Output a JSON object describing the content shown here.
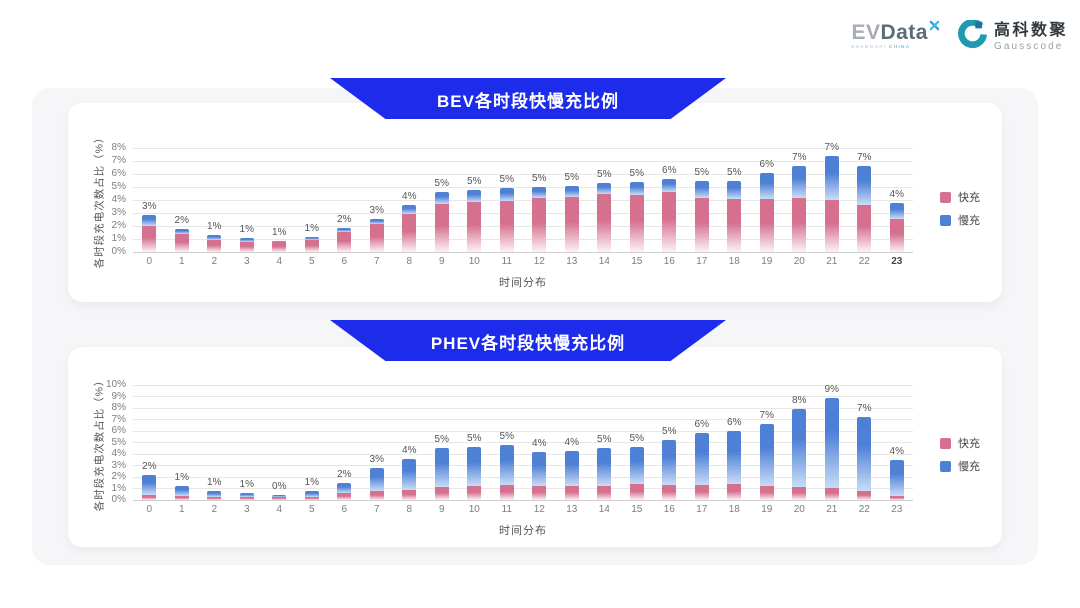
{
  "logo": {
    "ev": "EV",
    "data": "Data",
    "sub_1": "SHANGHAI",
    "sub_2": "CHINA",
    "brand_cn": "高科数聚",
    "brand_en": "Gausscode"
  },
  "colors": {
    "banner": "#1d2beb",
    "fast": "#d5708e",
    "fast_fade": "#fdf2f6",
    "slow": "#4e80d6",
    "slow_fade": "#c9dcf6",
    "grid": "#e7e7e7",
    "axis_line": "#cfcfcf",
    "logo_teal": "#1f9ab0",
    "logo_blue": "#1c73a8"
  },
  "chart_data": [
    {
      "type": "bar",
      "stacked": true,
      "title": "BEV各时段快慢充比例",
      "xlabel": "时间分布",
      "ylabel": "各时段充电次数占比（%）",
      "ylim": [
        0,
        8
      ],
      "ytick_step": 1,
      "ytick_suffix": "%",
      "grid": true,
      "legend_position": "right",
      "bold_last_xtick": true,
      "categories": [
        "0",
        "1",
        "2",
        "3",
        "4",
        "5",
        "6",
        "7",
        "8",
        "9",
        "10",
        "11",
        "12",
        "13",
        "14",
        "15",
        "16",
        "17",
        "18",
        "19",
        "20",
        "21",
        "22",
        "23"
      ],
      "series": [
        {
          "name": "快充",
          "color": "#d5708e",
          "values": [
            2.0,
            1.35,
            0.95,
            0.8,
            0.75,
            0.9,
            1.55,
            2.15,
            2.95,
            3.7,
            3.85,
            3.95,
            4.15,
            4.25,
            4.5,
            4.4,
            4.6,
            4.15,
            4.05,
            4.1,
            4.15,
            4.0,
            3.6,
            2.55
          ]
        },
        {
          "name": "慢充",
          "color": "#4e80d6",
          "values": [
            0.85,
            0.45,
            0.35,
            0.25,
            0.1,
            0.25,
            0.3,
            0.4,
            0.7,
            0.9,
            0.95,
            0.95,
            0.85,
            0.85,
            0.8,
            1.0,
            1.0,
            1.3,
            1.4,
            1.95,
            2.45,
            3.35,
            3.0,
            1.25
          ]
        }
      ],
      "total_labels": [
        "3%",
        "2%",
        "1%",
        "1%",
        "1%",
        "1%",
        "2%",
        "3%",
        "4%",
        "5%",
        "5%",
        "5%",
        "5%",
        "5%",
        "5%",
        "5%",
        "6%",
        "5%",
        "5%",
        "6%",
        "7%",
        "7%",
        "7%",
        "4%"
      ]
    },
    {
      "type": "bar",
      "stacked": true,
      "title": "PHEV各时段快慢充比例",
      "xlabel": "时间分布",
      "ylabel": "各时段充电次数占比（%）",
      "ylim": [
        0,
        10
      ],
      "ytick_step": 1,
      "ytick_suffix": "%",
      "grid": true,
      "legend_position": "right",
      "bold_last_xtick": false,
      "categories": [
        "0",
        "1",
        "2",
        "3",
        "4",
        "5",
        "6",
        "7",
        "8",
        "9",
        "10",
        "11",
        "12",
        "13",
        "14",
        "15",
        "16",
        "17",
        "18",
        "19",
        "20",
        "21",
        "22",
        "23"
      ],
      "series": [
        {
          "name": "快充",
          "color": "#d5708e",
          "values": [
            0.4,
            0.35,
            0.3,
            0.3,
            0.25,
            0.3,
            0.6,
            0.8,
            0.85,
            1.15,
            1.25,
            1.3,
            1.25,
            1.2,
            1.25,
            1.35,
            1.3,
            1.3,
            1.35,
            1.2,
            1.15,
            1.05,
            0.8,
            0.35
          ]
        },
        {
          "name": "慢充",
          "color": "#4e80d6",
          "values": [
            1.8,
            0.85,
            0.5,
            0.3,
            0.2,
            0.5,
            0.9,
            2.0,
            2.75,
            3.4,
            3.4,
            3.45,
            2.9,
            3.1,
            3.3,
            3.3,
            3.9,
            4.5,
            4.65,
            5.4,
            6.75,
            7.85,
            6.4,
            3.15
          ]
        }
      ],
      "total_labels": [
        "2%",
        "1%",
        "1%",
        "1%",
        "0%",
        "1%",
        "2%",
        "3%",
        "4%",
        "5%",
        "5%",
        "5%",
        "4%",
        "4%",
        "5%",
        "5%",
        "5%",
        "6%",
        "6%",
        "7%",
        "8%",
        "9%",
        "7%",
        "4%"
      ]
    }
  ]
}
